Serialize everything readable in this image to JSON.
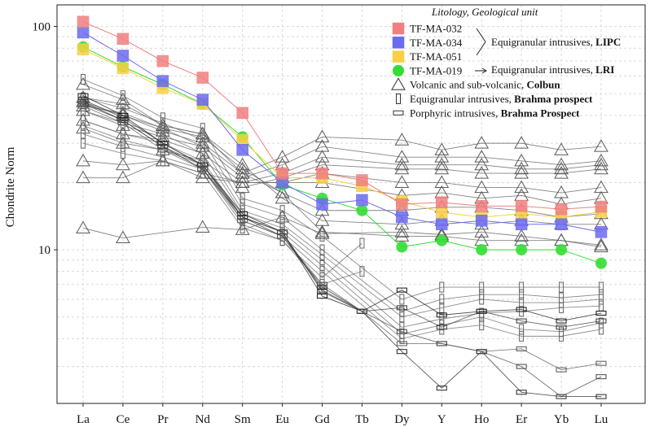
{
  "chart_data": {
    "type": "line",
    "y_scale": "log",
    "ylabel": "Chondrite Norm",
    "ylim": [
      2.05,
      125
    ],
    "yticks": [
      {
        "value": 10,
        "label": "10"
      },
      {
        "value": 100,
        "label": "100"
      }
    ],
    "categories": [
      "La",
      "Ce",
      "Pr",
      "Nd",
      "Sm",
      "Eu",
      "Gd",
      "Tb",
      "Dy",
      "Y",
      "Ho",
      "Er",
      "Yb",
      "Lu"
    ],
    "grid": true,
    "legend_title": "Litology, Geological unit",
    "legend_groups": [
      {
        "label": "Equigranular intrusives, ",
        "bold": "LIPC"
      },
      {
        "label": "Equigranular intrusives, ",
        "bold": "LRI"
      }
    ],
    "legend": [
      {
        "symbol": "square",
        "color": "#f08080",
        "label": "TF-MA-032",
        "bold": ""
      },
      {
        "symbol": "square",
        "color": "#6b6bef",
        "label": "TF-MA-034",
        "bold": ""
      },
      {
        "symbol": "square",
        "color": "#f7d045",
        "label": "TF-MA-051",
        "bold": ""
      },
      {
        "symbol": "circle",
        "color": "#33dd33",
        "label": "TF-MA-019",
        "bold": ""
      },
      {
        "symbol": "triangle",
        "color": "#333333",
        "label": "Volcanic and sub-volcanic, ",
        "bold": "Colbun"
      },
      {
        "symbol": "vrect",
        "color": "#333333",
        "label": "Equigranular intrusives, ",
        "bold": "Brahma prospect"
      },
      {
        "symbol": "hrect",
        "color": "#333333",
        "label": "Porphyric intrusives, ",
        "bold": "Brahma Prospect"
      }
    ],
    "series": [
      {
        "name": "TF-MA-032",
        "marker": "square",
        "color": "#f08080",
        "values": [
          105,
          88,
          70,
          59,
          41,
          22,
          22,
          20.5,
          16,
          16.3,
          15.7,
          15.7,
          15.2,
          15.6
        ]
      },
      {
        "name": "TF-MA-034",
        "marker": "square",
        "color": "#6b6bef",
        "values": [
          94,
          74,
          57,
          47,
          28,
          20,
          16,
          16.7,
          14,
          13,
          13.5,
          13,
          13,
          12
        ]
      },
      {
        "name": "TF-MA-051",
        "marker": "square",
        "color": "#f7d045",
        "values": [
          79,
          65,
          53,
          45,
          31,
          21,
          21,
          19.3,
          16.5,
          14.7,
          14,
          14.5,
          14,
          14.8
        ]
      },
      {
        "name": "TF-MA-019",
        "marker": "circle",
        "color": "#33dd33",
        "values": [
          81,
          66,
          55,
          45,
          32,
          19.5,
          17,
          15,
          10.3,
          11,
          10,
          10,
          10,
          8.7
        ]
      },
      {
        "name": "Colbun 1",
        "marker": "triangle",
        "color": "#5a5a5a",
        "values": [
          48,
          45,
          36,
          33,
          22,
          26,
          32,
          null,
          31,
          28,
          30,
          30,
          28,
          29
        ]
      },
      {
        "name": "Colbun 2",
        "marker": "triangle",
        "color": "#5a5a5a",
        "values": [
          42,
          36,
          32,
          29,
          21,
          24,
          29,
          null,
          26,
          26,
          26,
          25,
          24,
          25
        ]
      },
      {
        "name": "Colbun 3",
        "marker": "triangle",
        "color": "#5a5a5a",
        "values": [
          38,
          33,
          31,
          27,
          20,
          22,
          26,
          null,
          24,
          24,
          24,
          23,
          23,
          24
        ]
      },
      {
        "name": "Colbun 4",
        "marker": "triangle",
        "color": "#5a5a5a",
        "values": [
          35,
          30,
          28,
          25,
          19,
          21,
          24,
          null,
          23,
          23,
          22,
          22,
          22,
          23
        ]
      },
      {
        "name": "Colbun 5",
        "marker": "triangle",
        "color": "#5a5a5a",
        "values": [
          25,
          24,
          25,
          22,
          20,
          20,
          22,
          null,
          20,
          20,
          19,
          19,
          18,
          19
        ]
      },
      {
        "name": "Colbun 6",
        "marker": "triangle",
        "color": "#5a5a5a",
        "values": [
          21,
          21,
          25,
          21,
          20,
          20,
          20,
          null,
          17.5,
          18,
          17,
          17.5,
          16,
          17
        ]
      },
      {
        "name": "Colbun 7",
        "marker": "triangle",
        "color": "#5a5a5a",
        "values": [
          44,
          41,
          35,
          32,
          23,
          18,
          15,
          null,
          15,
          15.5,
          15.5,
          15,
          14,
          14.5
        ]
      },
      {
        "name": "Colbun 8",
        "marker": "triangle",
        "color": "#5a5a5a",
        "values": [
          55,
          47,
          36,
          33,
          24,
          17,
          13.5,
          null,
          13,
          13.5,
          13,
          13.5,
          13,
          13
        ]
      },
      {
        "name": "Colbun 9",
        "marker": "triangle",
        "color": "#5a5a5a",
        "values": [
          46,
          40,
          34,
          30,
          22,
          18,
          12,
          null,
          11.5,
          11.5,
          11,
          11,
          11,
          10.5
        ]
      },
      {
        "name": "Colbun 10",
        "marker": "triangle",
        "color": "#5a5a5a",
        "values": [
          12.5,
          11.3,
          null,
          12.6,
          12.3,
          14,
          11.8,
          null,
          12,
          11.7,
          12,
          11.5,
          11,
          10.3
        ]
      },
      {
        "name": "Brahma eq 1",
        "marker": "vrect",
        "color": "#666666",
        "values": [
          58,
          49,
          39,
          35,
          17,
          15,
          11.5,
          null,
          6,
          6.8,
          6.8,
          6.8,
          6.8,
          6.8
        ]
      },
      {
        "name": "Brahma eq 2",
        "marker": "vrect",
        "color": "#666666",
        "values": [
          48,
          43,
          37,
          31,
          16,
          14,
          10,
          null,
          5.3,
          6,
          6.3,
          6.3,
          6.1,
          6.3
        ]
      },
      {
        "name": "Brahma eq 3",
        "marker": "vrect",
        "color": "#666666",
        "values": [
          45,
          40,
          35,
          29,
          15,
          13,
          9.5,
          null,
          5,
          5.5,
          6,
          5.8,
          5.8,
          6
        ]
      },
      {
        "name": "Brahma eq 4",
        "marker": "vrect",
        "color": "#666666",
        "values": [
          42,
          37,
          33,
          27,
          14.5,
          12.5,
          9,
          null,
          4.5,
          4.9,
          5.2,
          5.3,
          5.5,
          5.6
        ]
      },
      {
        "name": "Brahma eq 5",
        "marker": "vrect",
        "color": "#666666",
        "values": [
          38,
          33,
          30,
          25,
          14,
          12,
          8.5,
          null,
          4.2,
          4.6,
          5,
          4.4,
          4.3,
          4.7
        ]
      },
      {
        "name": "Brahma eq 6",
        "marker": "vrect",
        "color": "#666666",
        "values": [
          36,
          31,
          28,
          24,
          13.5,
          11.5,
          8,
          null,
          4,
          4.4,
          4.6,
          4.1,
          4.1,
          4.4
        ]
      },
      {
        "name": "Brahma eq 7",
        "marker": "vrect",
        "color": "#666666",
        "values": [
          33,
          29,
          26,
          23,
          13,
          11,
          7.5,
          10.7,
          null,
          null,
          null,
          null,
          null,
          null
        ]
      },
      {
        "name": "Brahma eq 8",
        "marker": "vrect",
        "color": "#666666",
        "values": [
          30,
          27,
          25,
          22,
          12.5,
          11,
          7,
          8,
          null,
          null,
          null,
          null,
          null,
          null
        ]
      },
      {
        "name": "Brahma por 1",
        "marker": "hrect",
        "color": "#111111",
        "values": [
          49,
          40,
          30,
          24,
          14.5,
          12,
          6.2,
          5.3,
          6.6,
          5.1,
          5.3,
          5.4,
          4.8,
          5.2
        ]
      },
      {
        "name": "Brahma por 2",
        "marker": "hrect",
        "color": "#333333",
        "values": [
          47,
          39,
          30,
          24,
          14,
          12,
          6.5,
          5.3,
          5.5,
          4.5,
          5.3,
          4.8,
          4.5,
          4.8
        ]
      },
      {
        "name": "Brahma por 3",
        "marker": "hrect",
        "color": "#222222",
        "values": [
          46,
          38,
          29,
          23,
          14,
          11.5,
          6.8,
          5.3,
          3.5,
          2.4,
          3.5,
          2.3,
          2.2,
          2.2
        ]
      },
      {
        "name": "Brahma por 4",
        "marker": "hrect",
        "color": "#555555",
        "values": [
          44,
          37,
          28,
          23,
          13.5,
          11.5,
          7,
          5.3,
          3.8,
          3.8,
          3.5,
          3.6,
          2.9,
          3.1
        ]
      },
      {
        "name": "Brahma por 5",
        "marker": "hrect",
        "color": "#444444",
        "values": [
          45,
          38,
          29,
          24,
          14,
          12,
          6.6,
          5.3,
          4.3,
          3.8,
          3.5,
          3,
          2.2,
          2.7
        ]
      }
    ]
  }
}
